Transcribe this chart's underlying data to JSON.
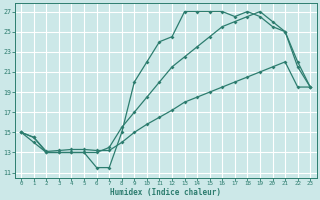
{
  "bg_color": "#cce8e8",
  "grid_color": "#ffffff",
  "line_color": "#2d7d6f",
  "xlabel": "Humidex (Indice chaleur)",
  "xlim": [
    -0.5,
    23.5
  ],
  "ylim": [
    10.5,
    27.8
  ],
  "xticks": [
    0,
    1,
    2,
    3,
    4,
    5,
    6,
    7,
    8,
    9,
    10,
    11,
    12,
    13,
    14,
    15,
    16,
    17,
    18,
    19,
    20,
    21,
    22,
    23
  ],
  "yticks": [
    11,
    13,
    15,
    17,
    19,
    21,
    23,
    25,
    27
  ],
  "line1_x": [
    0,
    1,
    2,
    3,
    4,
    5,
    6,
    7,
    8,
    9,
    10,
    11,
    12,
    13,
    14,
    15,
    16,
    17,
    18,
    19,
    20,
    21,
    22,
    23
  ],
  "line1_y": [
    15,
    14,
    13,
    13,
    13,
    13,
    11.5,
    11.5,
    15,
    20,
    22,
    24,
    24.5,
    27,
    27,
    27,
    27,
    26.5,
    27,
    26.5,
    25.5,
    25,
    22,
    19.5
  ],
  "line2_x": [
    0,
    1,
    2,
    3,
    4,
    5,
    6,
    7,
    8,
    9,
    10,
    11,
    12,
    13,
    14,
    15,
    16,
    17,
    18,
    19,
    20,
    21,
    22,
    23
  ],
  "line2_y": [
    15,
    14.5,
    13.1,
    13.2,
    13.3,
    13.3,
    13.2,
    13.2,
    14.0,
    15.0,
    15.8,
    16.5,
    17.2,
    18.0,
    18.5,
    19.0,
    19.5,
    20.0,
    20.5,
    21.0,
    21.5,
    22.0,
    19.5,
    19.5
  ],
  "line3_x": [
    0,
    1,
    2,
    3,
    4,
    5,
    6,
    7,
    8,
    9,
    10,
    11,
    12,
    13,
    14,
    15,
    16,
    17,
    18,
    19,
    20,
    21,
    22,
    23
  ],
  "line3_y": [
    15,
    14.5,
    13.0,
    13.0,
    13.0,
    13.0,
    13.0,
    13.5,
    15.5,
    17.0,
    18.5,
    20.0,
    21.5,
    22.5,
    23.5,
    24.5,
    25.5,
    26.0,
    26.5,
    27.0,
    26.0,
    25.0,
    21.5,
    19.5
  ]
}
